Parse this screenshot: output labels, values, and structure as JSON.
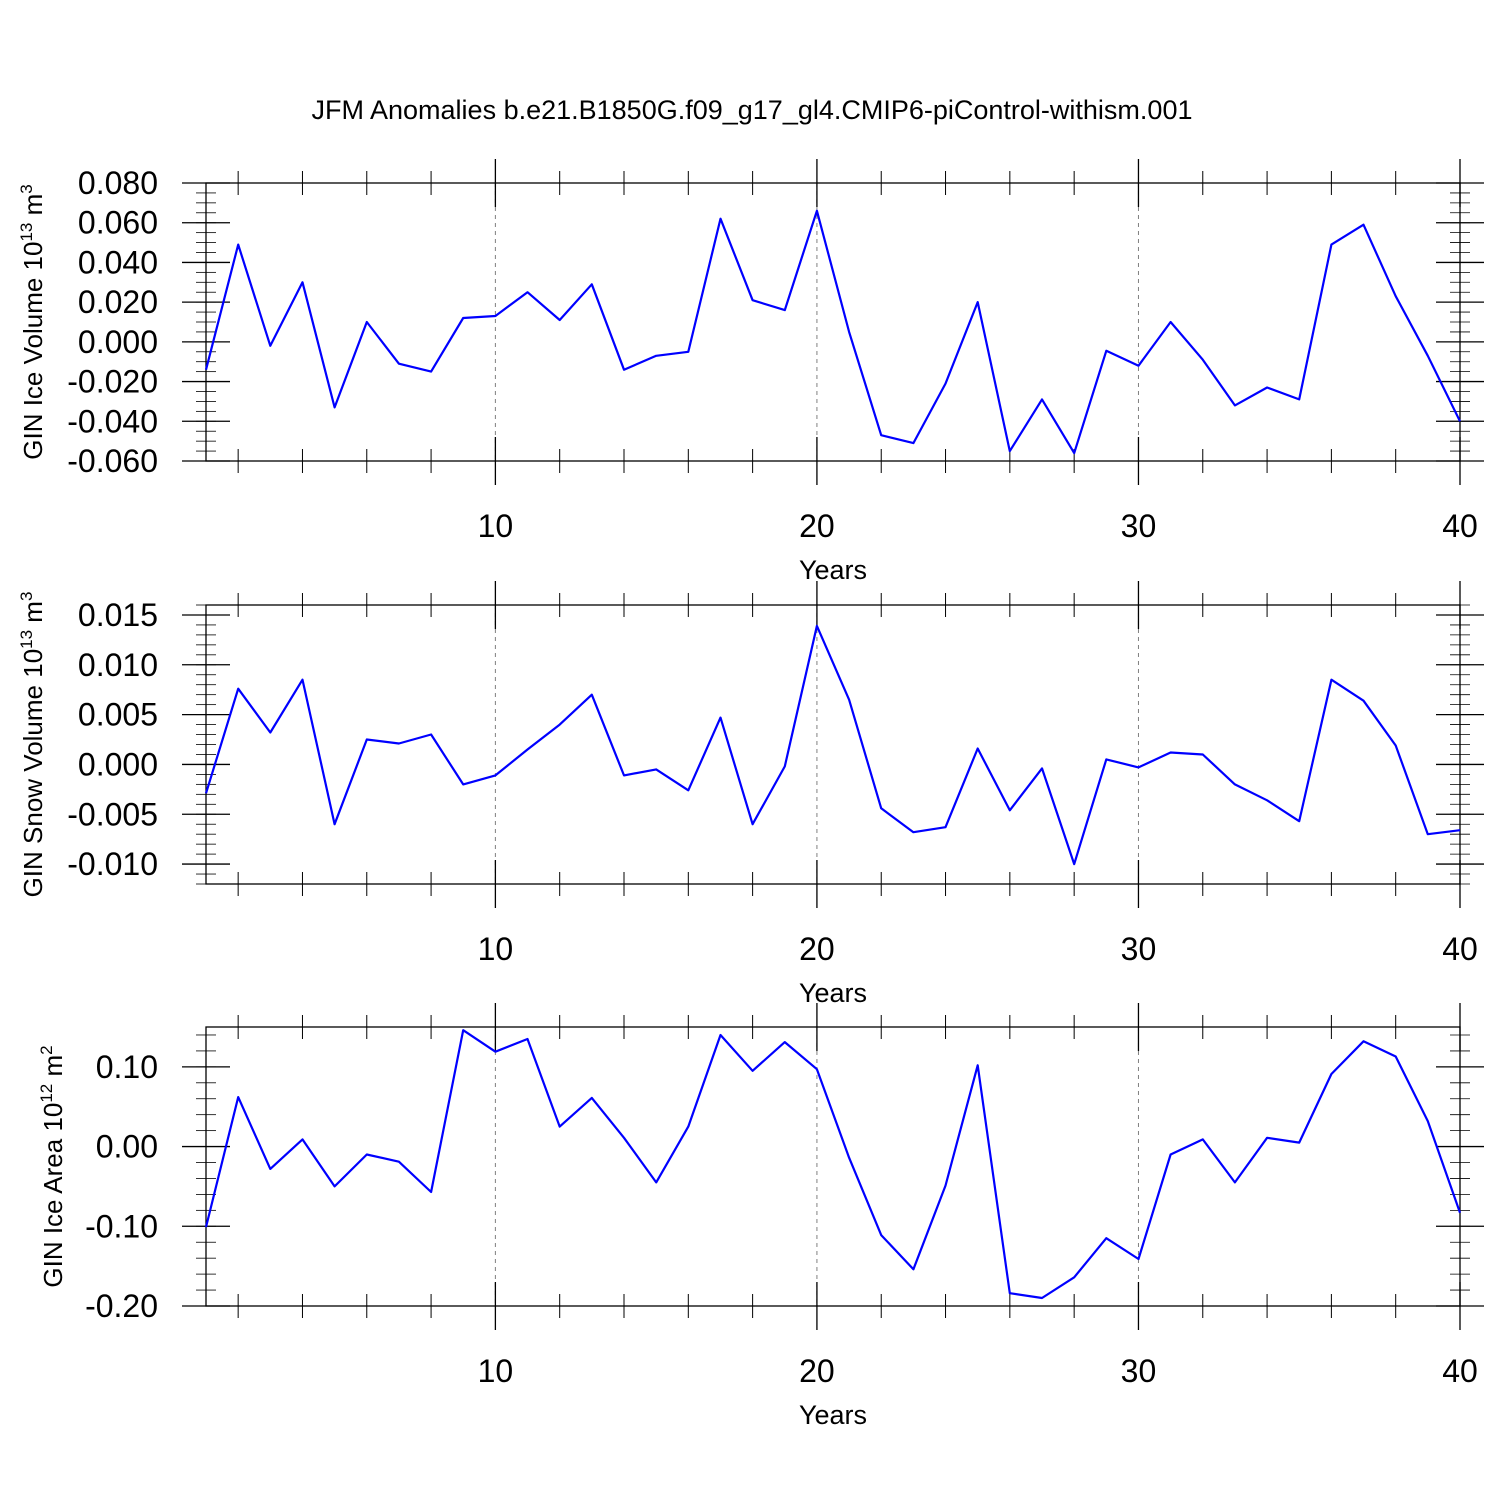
{
  "title": "JFM Anomalies b.e21.B1850G.f09_g17_gl4.CMIP6-piControl-withism.001",
  "colors": {
    "line": "#0000ff",
    "axes": "#000000",
    "grid": "#808080"
  },
  "chart_data": [
    {
      "type": "line",
      "xlabel": "Years",
      "ylabel": "GIN Ice Volume 10",
      "ylabel_exp": "13",
      "ylabel_unit": " m",
      "ylabel_unit_exp": "3",
      "xlim": [
        1,
        40
      ],
      "ylim": [
        -0.06,
        0.08
      ],
      "xticks": [
        10,
        20,
        30,
        40
      ],
      "xtick_labels": [
        "10",
        "20",
        "30",
        "40"
      ],
      "yticks": [
        -0.06,
        -0.04,
        -0.02,
        0.0,
        0.02,
        0.04,
        0.06,
        0.08
      ],
      "ytick_labels": [
        "-0.060",
        "-0.040",
        "-0.020",
        "0.000",
        "0.020",
        "0.040",
        "0.060",
        "0.080"
      ],
      "yminor_step": 0.005,
      "grid": "vertical dashed at major x ticks",
      "x": [
        1,
        2,
        3,
        4,
        5,
        6,
        7,
        8,
        9,
        10,
        11,
        12,
        13,
        14,
        15,
        16,
        17,
        18,
        19,
        20,
        21,
        22,
        23,
        24,
        25,
        26,
        27,
        28,
        29,
        30,
        31,
        32,
        33,
        34,
        35,
        36,
        37,
        38,
        39,
        40
      ],
      "values": [
        -0.014,
        0.049,
        -0.002,
        0.03,
        -0.033,
        0.01,
        -0.011,
        -0.015,
        0.012,
        0.013,
        0.025,
        0.011,
        0.029,
        -0.014,
        -0.007,
        -0.005,
        0.062,
        0.021,
        0.016,
        0.066,
        0.005,
        -0.047,
        -0.051,
        -0.021,
        0.02,
        -0.055,
        -0.029,
        -0.056,
        -0.0045,
        -0.012,
        0.01,
        -0.009,
        -0.032,
        -0.023,
        -0.029,
        0.049,
        0.059,
        0.023,
        -0.007,
        -0.04
      ]
    },
    {
      "type": "line",
      "xlabel": "Years",
      "ylabel": "GIN Snow Volume 10",
      "ylabel_exp": "13",
      "ylabel_unit": " m",
      "ylabel_unit_exp": "3",
      "xlim": [
        1,
        40
      ],
      "ylim": [
        -0.012,
        0.016
      ],
      "xticks": [
        10,
        20,
        30,
        40
      ],
      "xtick_labels": [
        "10",
        "20",
        "30",
        "40"
      ],
      "yticks": [
        -0.01,
        -0.005,
        0.0,
        0.005,
        0.01,
        0.015
      ],
      "ytick_labels": [
        "-0.010",
        "-0.005",
        "0.000",
        "0.005",
        "0.010",
        "0.015"
      ],
      "yminor_step": 0.001,
      "grid": "vertical dashed at major x ticks",
      "x": [
        1,
        2,
        3,
        4,
        5,
        6,
        7,
        8,
        9,
        10,
        11,
        12,
        13,
        14,
        15,
        16,
        17,
        18,
        19,
        20,
        21,
        22,
        23,
        24,
        25,
        26,
        27,
        28,
        29,
        30,
        31,
        32,
        33,
        34,
        35,
        36,
        37,
        38,
        39,
        40
      ],
      "values": [
        -0.0029,
        0.0076,
        0.0032,
        0.0085,
        -0.006,
        0.0025,
        0.0021,
        0.003,
        -0.002,
        -0.0011,
        0.0015,
        0.004,
        0.007,
        -0.0011,
        -0.0005,
        -0.0026,
        0.0047,
        -0.006,
        -0.0002,
        0.0139,
        0.0065,
        -0.0044,
        -0.0068,
        -0.0063,
        0.0016,
        -0.0046,
        -0.0004,
        -0.01,
        0.0005,
        -0.0003,
        0.0012,
        0.001,
        -0.002,
        -0.0036,
        -0.0057,
        0.0085,
        0.0064,
        0.0019,
        -0.007,
        -0.0066
      ]
    },
    {
      "type": "line",
      "xlabel": "Years",
      "ylabel": "GIN Ice Area 10",
      "ylabel_exp": "12",
      "ylabel_unit": " m",
      "ylabel_unit_exp": "2",
      "xlim": [
        1,
        40
      ],
      "ylim": [
        -0.2,
        0.15
      ],
      "xticks": [
        10,
        20,
        30,
        40
      ],
      "xtick_labels": [
        "10",
        "20",
        "30",
        "40"
      ],
      "yticks": [
        -0.2,
        -0.1,
        0.0,
        0.1
      ],
      "ytick_labels": [
        "-0.20",
        "-0.10",
        "0.00",
        "0.10"
      ],
      "yminor_step": 0.02,
      "grid": "vertical dashed at major x ticks",
      "x": [
        1,
        2,
        3,
        4,
        5,
        6,
        7,
        8,
        9,
        10,
        11,
        12,
        13,
        14,
        15,
        16,
        17,
        18,
        19,
        20,
        21,
        22,
        23,
        24,
        25,
        26,
        27,
        28,
        29,
        30,
        31,
        32,
        33,
        34,
        35,
        36,
        37,
        38,
        39,
        40
      ],
      "values": [
        -0.101,
        0.062,
        -0.028,
        0.009,
        -0.05,
        -0.01,
        -0.019,
        -0.057,
        0.146,
        0.119,
        0.135,
        0.025,
        0.061,
        0.011,
        -0.045,
        0.025,
        0.14,
        0.095,
        0.131,
        0.097,
        -0.014,
        -0.111,
        -0.154,
        -0.049,
        0.102,
        -0.184,
        -0.19,
        -0.164,
        -0.115,
        -0.141,
        -0.01,
        0.009,
        -0.045,
        0.011,
        0.005,
        0.091,
        0.132,
        0.113,
        0.032,
        -0.083
      ]
    }
  ]
}
